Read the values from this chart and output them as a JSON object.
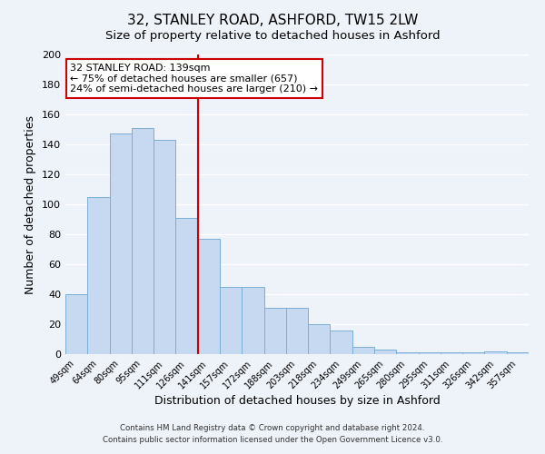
{
  "title": "32, STANLEY ROAD, ASHFORD, TW15 2LW",
  "subtitle": "Size of property relative to detached houses in Ashford",
  "xlabel": "Distribution of detached houses by size in Ashford",
  "ylabel": "Number of detached properties",
  "bar_labels": [
    "49sqm",
    "64sqm",
    "80sqm",
    "95sqm",
    "111sqm",
    "126sqm",
    "141sqm",
    "157sqm",
    "172sqm",
    "188sqm",
    "203sqm",
    "218sqm",
    "234sqm",
    "249sqm",
    "265sqm",
    "280sqm",
    "295sqm",
    "311sqm",
    "326sqm",
    "342sqm",
    "357sqm"
  ],
  "bar_values": [
    40,
    105,
    147,
    151,
    143,
    91,
    77,
    45,
    45,
    31,
    31,
    20,
    16,
    5,
    3,
    1,
    1,
    1,
    1,
    2,
    1
  ],
  "bar_color": "#c6d9f0",
  "bar_edge_color": "#7bafd4",
  "vline_x_idx": 6,
  "vline_color": "#cc0000",
  "ylim": [
    0,
    200
  ],
  "yticks": [
    0,
    20,
    40,
    60,
    80,
    100,
    120,
    140,
    160,
    180,
    200
  ],
  "annotation_title": "32 STANLEY ROAD: 139sqm",
  "annotation_line1": "← 75% of detached houses are smaller (657)",
  "annotation_line2": "24% of semi-detached houses are larger (210) →",
  "annotation_box_color": "#ffffff",
  "annotation_box_edge": "#cc0000",
  "footer_line1": "Contains HM Land Registry data © Crown copyright and database right 2024.",
  "footer_line2": "Contains public sector information licensed under the Open Government Licence v3.0.",
  "background_color": "#eef2f9",
  "plot_background": "#eef2f9",
  "title_fontsize": 11,
  "subtitle_fontsize": 9.5
}
